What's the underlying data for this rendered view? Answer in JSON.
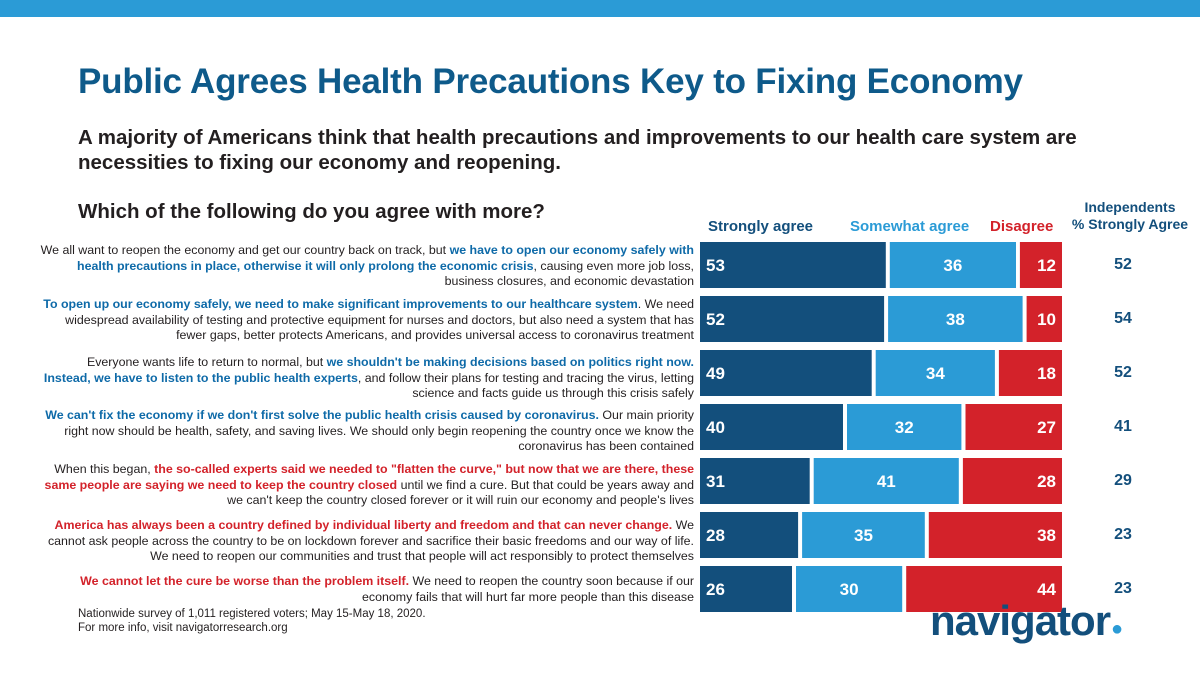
{
  "title": "Public Agrees Health Precautions Key to Fixing Economy",
  "subtitle": "A majority of Americans think that health precautions and improvements to our health care system are necessities to fixing our economy and reopening.",
  "question": "Which of the following do you agree with more?",
  "legend": {
    "strongly": "Strongly agree",
    "somewhat": "Somewhat agree",
    "disagree": "Disagree"
  },
  "independents_header": {
    "line1": "Independents",
    "line2": "% Strongly Agree"
  },
  "colors": {
    "strongly": "#134f7c",
    "somewhat": "#2b9bd6",
    "disagree": "#d3222a",
    "title": "#0e5a8a"
  },
  "statements": [
    {
      "parts": [
        {
          "text": "We all want to reopen the economy and get our country back on track, but ",
          "style": "normal"
        },
        {
          "text": "we have to open our economy safely with health precautions in place, otherwise it will only prolong the economic crisis",
          "style": "blue"
        },
        {
          "text": ", causing even more job loss, business closures, and economic devastation",
          "style": "normal"
        }
      ]
    },
    {
      "parts": [
        {
          "text": "To open up our economy safely, we need to make significant improvements to our healthcare system",
          "style": "blue"
        },
        {
          "text": ". We need widespread availability of testing and protective equipment for nurses and doctors, but also need a system that has fewer gaps, better protects Americans, and provides universal access to coronavirus treatment",
          "style": "normal"
        }
      ]
    },
    {
      "parts": [
        {
          "text": "Everyone wants life to return to normal, but ",
          "style": "normal"
        },
        {
          "text": "we shouldn't be making decisions based on politics right now. Instead, we have to listen to the public health experts",
          "style": "blue"
        },
        {
          "text": ", and follow their plans for testing and tracing the virus, letting science and facts guide us through this crisis safely",
          "style": "normal"
        }
      ]
    },
    {
      "parts": [
        {
          "text": "We can't fix the economy if we don't first solve the public health crisis caused by coronavirus.",
          "style": "blue"
        },
        {
          "text": " Our main priority right now should be health, safety, and saving lives. We should only begin reopening the country once we know the coronavirus has been contained",
          "style": "normal"
        }
      ]
    },
    {
      "parts": [
        {
          "text": "When this began, ",
          "style": "normal"
        },
        {
          "text": "the so-called experts said we needed to \"flatten the curve,\" but now that we are there, these same people are saying we need to keep the country closed",
          "style": "red"
        },
        {
          "text": " until we find a cure. But that could be years away and we can't keep the country closed forever or it will ruin our economy and people's lives",
          "style": "normal"
        }
      ]
    },
    {
      "parts": [
        {
          "text": "America has always been a country defined by individual liberty and freedom and that can never change.",
          "style": "red"
        },
        {
          "text": " We cannot ask people across the country to be on lockdown forever and sacrifice their basic freedoms and our way of life. We need to reopen our communities and trust that people will act responsibly to protect themselves",
          "style": "normal"
        }
      ]
    },
    {
      "parts": [
        {
          "text": "We cannot let the cure be worse than the problem itself.",
          "style": "red"
        },
        {
          "text": " We need to reopen the country soon because if our economy fails that will hurt far more people than this disease",
          "style": "normal"
        }
      ]
    }
  ],
  "chart_data": {
    "type": "bar",
    "orientation": "horizontal",
    "stacked": true,
    "title": "Which of the following do you agree with more?",
    "series": [
      {
        "name": "Strongly agree",
        "values": [
          53,
          52,
          49,
          40,
          31,
          28,
          26
        ]
      },
      {
        "name": "Somewhat agree",
        "values": [
          36,
          38,
          34,
          32,
          41,
          35,
          30
        ]
      },
      {
        "name": "Disagree",
        "values": [
          12,
          10,
          18,
          27,
          28,
          38,
          44
        ]
      }
    ],
    "independents_strongly_agree": {
      "name": "Independents % Strongly Agree",
      "values": [
        52,
        54,
        52,
        41,
        29,
        23,
        23
      ]
    }
  },
  "footnote": {
    "line1": "Nationwide survey of 1,011 registered voters; May 15-May 18, 2020.",
    "line2": "For more info, visit navigatorresearch.org"
  },
  "logo": {
    "text": "navigator",
    "dot": "●"
  }
}
